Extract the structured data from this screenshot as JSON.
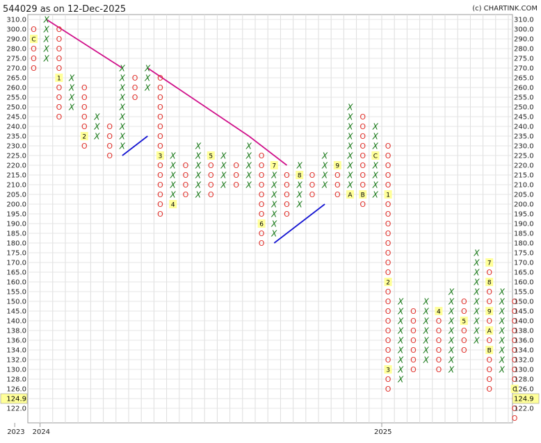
{
  "header": {
    "title": "544029 as on 12-Dec-2025",
    "copyright": "(c) CHARTINK.COM"
  },
  "chart_data": {
    "type": "point-and-figure",
    "symbol": "544029",
    "as_on": "12-Dec-2025",
    "y_ticks": [
      "310.0",
      "300.0",
      "290.0",
      "280.0",
      "275.0",
      "270.0",
      "265.0",
      "260.0",
      "255.0",
      "250.0",
      "245.0",
      "240.0",
      "235.0",
      "230.0",
      "225.0",
      "220.0",
      "215.0",
      "210.0",
      "205.0",
      "200.0",
      "195.0",
      "190.0",
      "185.0",
      "180.0",
      "175.0",
      "170.0",
      "165.0",
      "160.0",
      "155.0",
      "150.0",
      "145.0",
      "140.0",
      "138.0",
      "136.0",
      "134.0",
      "132.0",
      "130.0",
      "128.0",
      "126.0",
      "124.9",
      "122.0"
    ],
    "current_price": "124.9",
    "x_labels": [
      {
        "label": "2023",
        "col": -1
      },
      {
        "label": "2024",
        "col": 1
      },
      {
        "label": "2025",
        "col": 28
      }
    ],
    "columns": [
      {
        "type": "O",
        "top": 1,
        "bottom": 5,
        "markers": {
          "2": "C"
        }
      },
      {
        "type": "X",
        "top": 0,
        "bottom": 4
      },
      {
        "type": "O",
        "top": 1,
        "bottom": 10,
        "markers": {
          "6": "1"
        }
      },
      {
        "type": "X",
        "top": 6,
        "bottom": 9
      },
      {
        "type": "O",
        "top": 7,
        "bottom": 13,
        "markers": {
          "12": "2"
        }
      },
      {
        "type": "X",
        "top": 10,
        "bottom": 12
      },
      {
        "type": "O",
        "top": 11,
        "bottom": 14
      },
      {
        "type": "X",
        "top": 5,
        "bottom": 13
      },
      {
        "type": "O",
        "top": 6,
        "bottom": 8
      },
      {
        "type": "X",
        "top": 5,
        "bottom": 7
      },
      {
        "type": "O",
        "top": 6,
        "bottom": 20,
        "markers": {
          "14": "3"
        }
      },
      {
        "type": "X",
        "top": 14,
        "bottom": 19,
        "markers": {
          "19": "4"
        }
      },
      {
        "type": "O",
        "top": 15,
        "bottom": 18
      },
      {
        "type": "X",
        "top": 13,
        "bottom": 18
      },
      {
        "type": "O",
        "top": 14,
        "bottom": 18,
        "markers": {
          "14": "5"
        }
      },
      {
        "type": "X",
        "top": 14,
        "bottom": 17
      },
      {
        "type": "O",
        "top": 15,
        "bottom": 17
      },
      {
        "type": "X",
        "top": 13,
        "bottom": 17
      },
      {
        "type": "O",
        "top": 14,
        "bottom": 23,
        "markers": {
          "21": "6"
        }
      },
      {
        "type": "X",
        "top": 15,
        "bottom": 22,
        "markers": {
          "15": "7"
        }
      },
      {
        "type": "O",
        "top": 16,
        "bottom": 20
      },
      {
        "type": "X",
        "top": 15,
        "bottom": 19,
        "markers": {
          "16": "8"
        }
      },
      {
        "type": "O",
        "top": 16,
        "bottom": 18
      },
      {
        "type": "X",
        "top": 14,
        "bottom": 17
      },
      {
        "type": "O",
        "top": 15,
        "bottom": 18,
        "markers": {
          "15": "9"
        }
      },
      {
        "type": "X",
        "top": 9,
        "bottom": 18,
        "markers": {
          "18": "A"
        }
      },
      {
        "type": "O",
        "top": 10,
        "bottom": 19,
        "markers": {
          "18": "B"
        }
      },
      {
        "type": "X",
        "top": 11,
        "bottom": 18,
        "markers": {
          "14": "C"
        }
      },
      {
        "type": "O",
        "top": 13,
        "bottom": 38,
        "markers": {
          "18": "1",
          "27": "2",
          "36": "3"
        }
      },
      {
        "type": "X",
        "top": 29,
        "bottom": 37
      },
      {
        "type": "O",
        "top": 30,
        "bottom": 36
      },
      {
        "type": "X",
        "top": 29,
        "bottom": 35
      },
      {
        "type": "O",
        "top": 30,
        "bottom": 36,
        "markers": {
          "30": "4"
        }
      },
      {
        "type": "X",
        "top": 28,
        "bottom": 36
      },
      {
        "type": "O",
        "top": 29,
        "bottom": 34,
        "markers": {
          "31": "5"
        }
      },
      {
        "type": "X",
        "top": 24,
        "bottom": 33
      },
      {
        "type": "O",
        "top": 25,
        "bottom": 38,
        "markers": {
          "25": "7",
          "27": "8",
          "30": "9",
          "32": "A",
          "34": "B"
        }
      },
      {
        "type": "X",
        "top": 28,
        "bottom": 36
      },
      {
        "type": "O",
        "top": 29,
        "bottom": 41,
        "markers": {
          "38": "C"
        }
      }
    ],
    "trendlines": [
      {
        "kind": "resistance",
        "color": "#d0108a",
        "from": {
          "col": 1,
          "row": 0
        },
        "to": {
          "col": 7,
          "row": 5
        }
      },
      {
        "kind": "resistance",
        "color": "#d0108a",
        "from": {
          "col": 9,
          "row": 5
        },
        "to": {
          "col": 17,
          "row": 12
        }
      },
      {
        "kind": "resistance",
        "color": "#d0108a",
        "from": {
          "col": 17,
          "row": 12
        },
        "to": {
          "col": 20,
          "row": 15
        }
      },
      {
        "kind": "support",
        "color": "#1414d2",
        "from": {
          "col": 7,
          "row": 14
        },
        "to": {
          "col": 9,
          "row": 12
        }
      },
      {
        "kind": "support",
        "color": "#1414d2",
        "from": {
          "col": 19,
          "row": 23
        },
        "to": {
          "col": 23,
          "row": 19
        }
      }
    ]
  }
}
